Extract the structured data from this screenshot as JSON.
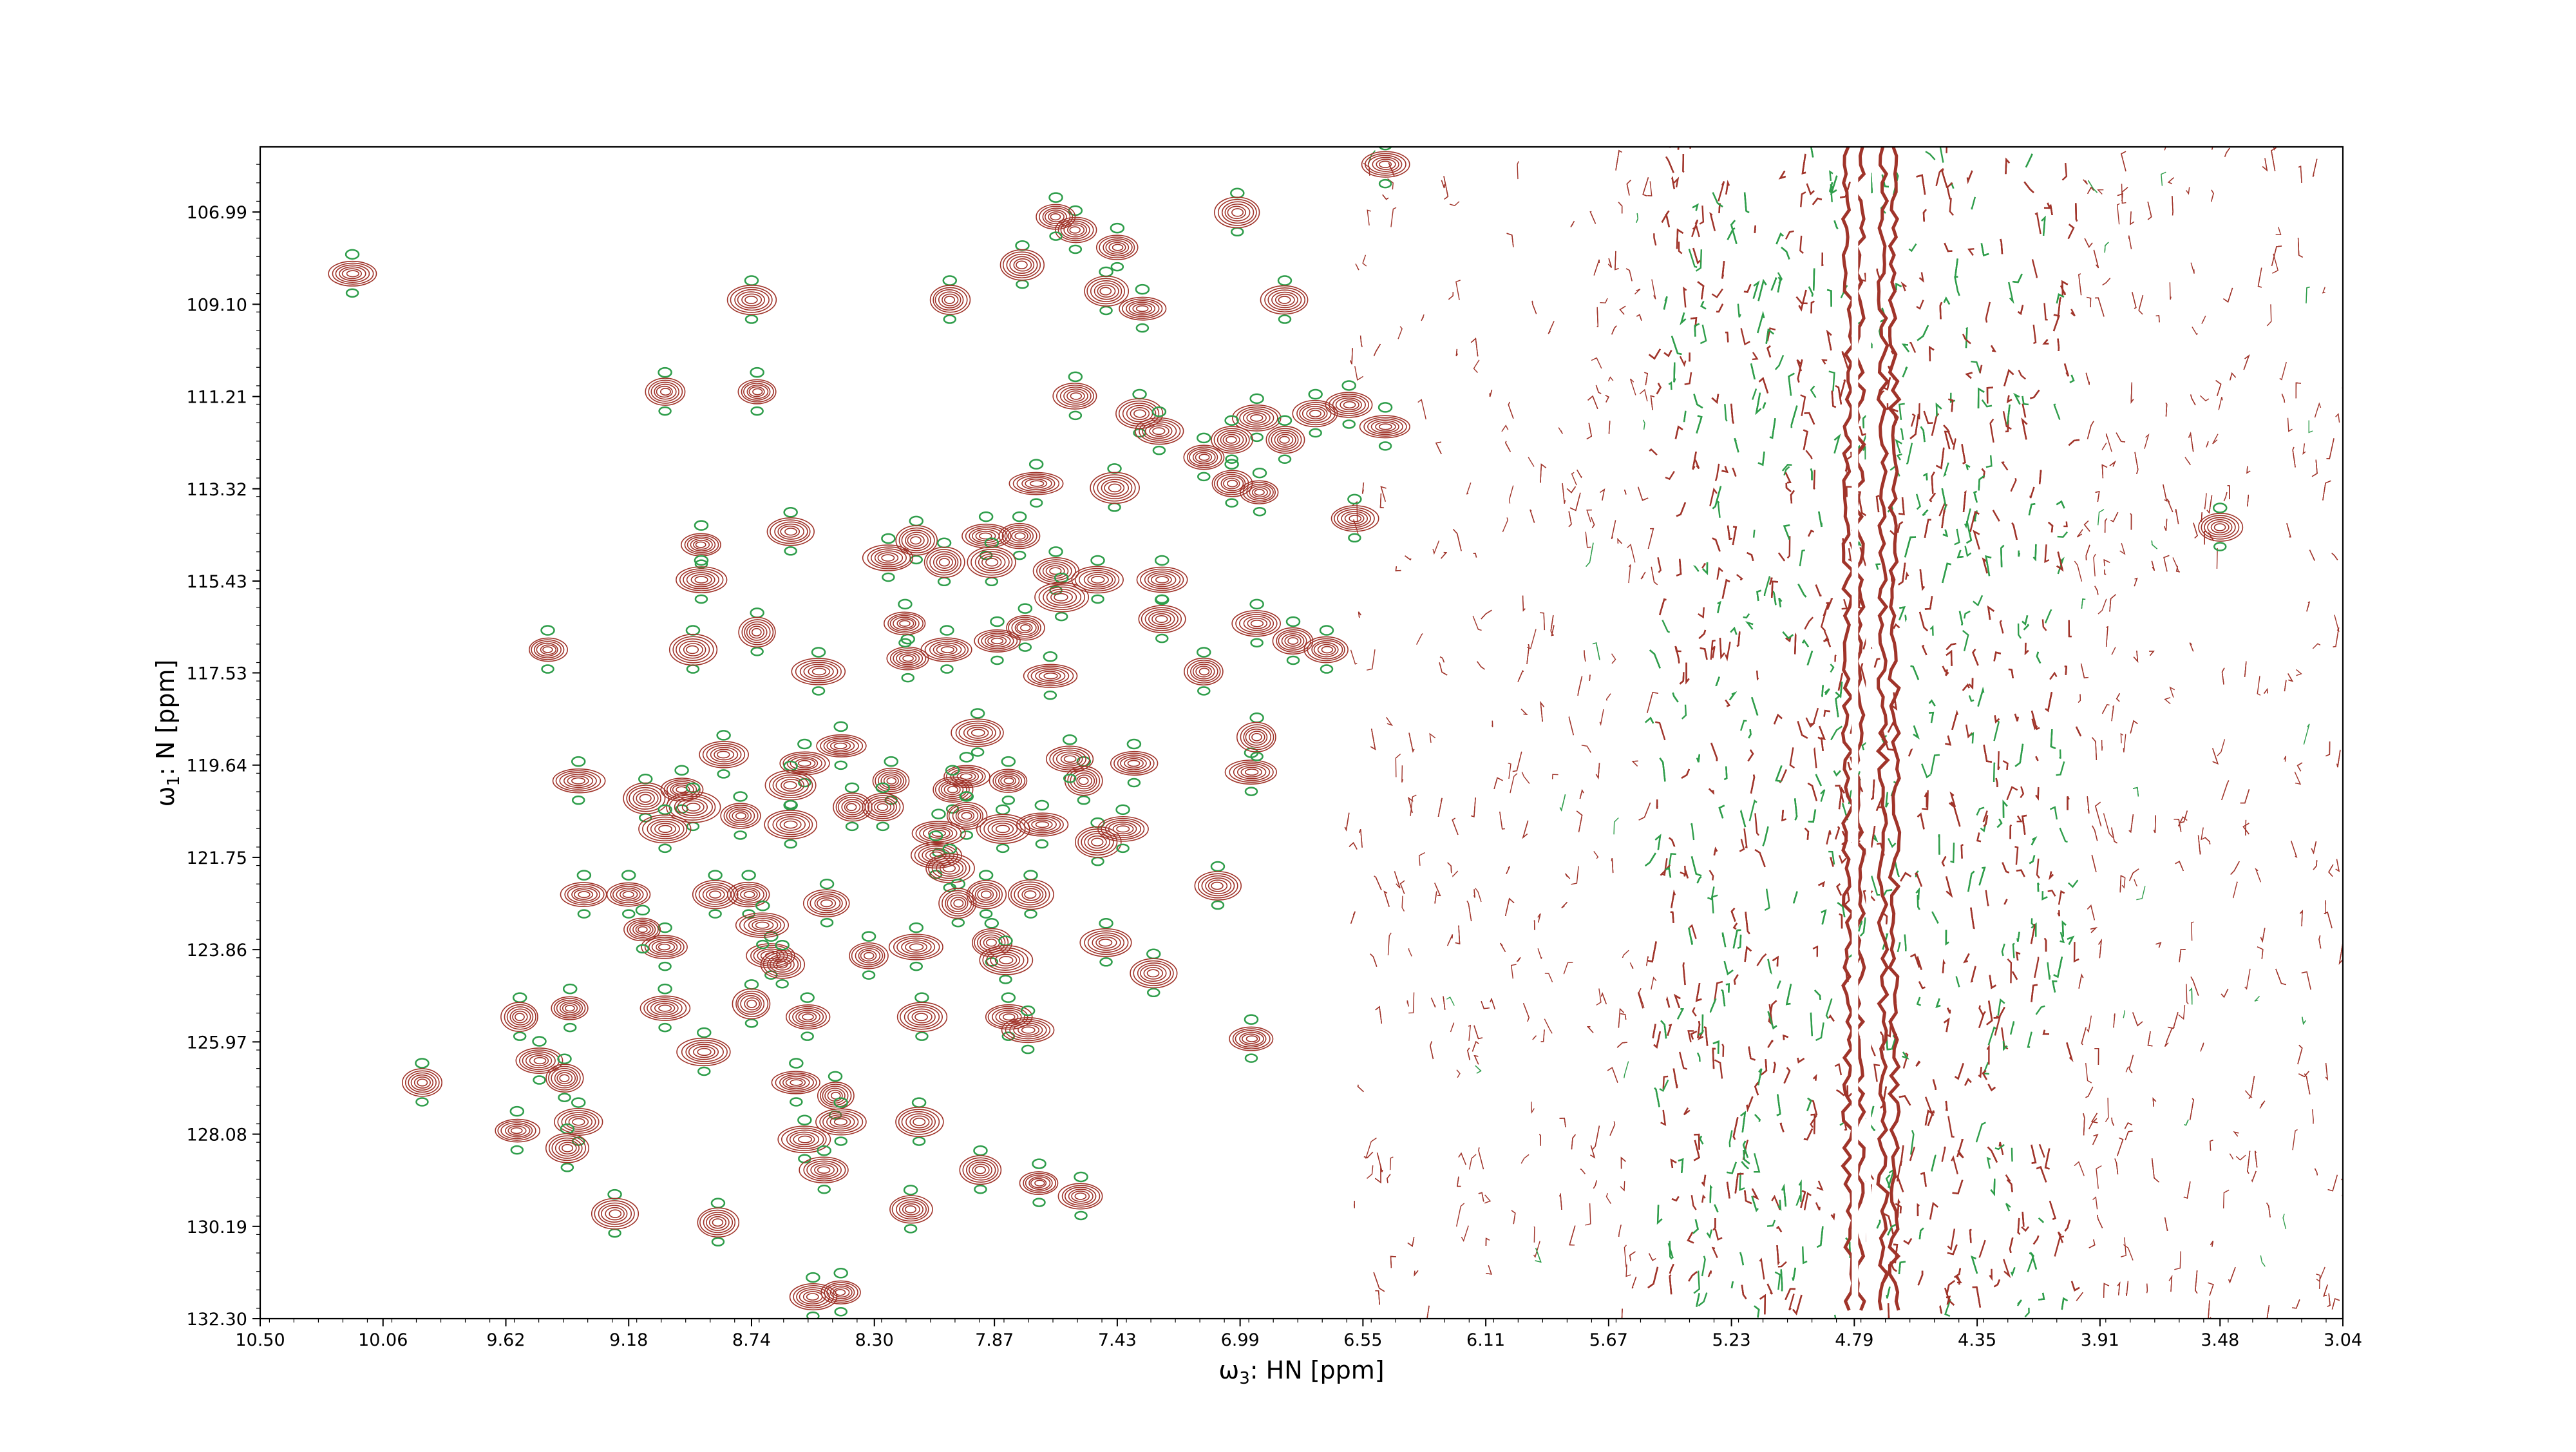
{
  "chart_data": {
    "type": "heatmap",
    "subtype": "2D NMR contour spectrum",
    "title": "",
    "xlabel": {
      "symbol": "ω",
      "subscript": "3",
      "text": ": HN [ppm]"
    },
    "ylabel": {
      "symbol": "ω",
      "subscript": "1",
      "text": ": N [ppm]"
    },
    "xlim": [
      10.5,
      3.04
    ],
    "ylim": [
      132.3,
      105.5
    ],
    "x_axis_reversed": true,
    "y_axis_reversed": true,
    "x_ticks": [
      "10.50",
      "10.06",
      "9.62",
      "9.18",
      "8.74",
      "8.30",
      "7.87",
      "7.43",
      "6.99",
      "6.55",
      "6.11",
      "5.67",
      "5.23",
      "4.79",
      "4.35",
      "3.91",
      "3.48",
      "3.04"
    ],
    "y_ticks": [
      "106.99",
      "109.10",
      "111.21",
      "113.32",
      "115.43",
      "117.53",
      "119.64",
      "121.75",
      "123.86",
      "125.97",
      "128.08",
      "130.19",
      "132.30"
    ],
    "grid": false,
    "legend": "none",
    "colors": {
      "positive": "#a0342a",
      "negative": "#2e9d4a",
      "axes": "#000000"
    },
    "noise_band_ppm": [
      6.6,
      3.04
    ],
    "water_ridges_ppm": [
      4.79,
      4.78
    ],
    "peaks": [
      [
        10.17,
        108.4
      ],
      [
        8.74,
        109.0
      ],
      [
        8.03,
        109.0
      ],
      [
        7.58,
        107.4
      ],
      [
        7.65,
        107.1
      ],
      [
        7.47,
        108.8
      ],
      [
        7.34,
        109.2
      ],
      [
        7.77,
        108.2
      ],
      [
        7.43,
        107.8
      ],
      [
        6.83,
        109.0
      ],
      [
        7.0,
        107.0
      ],
      [
        6.47,
        105.9
      ],
      [
        9.05,
        111.1
      ],
      [
        8.72,
        111.1
      ],
      [
        7.58,
        111.2
      ],
      [
        7.35,
        111.6
      ],
      [
        7.28,
        112.0
      ],
      [
        6.93,
        111.7
      ],
      [
        6.83,
        112.2
      ],
      [
        6.72,
        111.6
      ],
      [
        6.92,
        113.4
      ],
      [
        7.02,
        113.2
      ],
      [
        7.12,
        112.6
      ],
      [
        7.02,
        112.2
      ],
      [
        6.47,
        111.9
      ],
      [
        6.6,
        111.4
      ],
      [
        6.58,
        114.0
      ],
      [
        7.72,
        113.2
      ],
      [
        7.44,
        113.3
      ],
      [
        8.6,
        114.3
      ],
      [
        8.15,
        114.5
      ],
      [
        8.05,
        115.0
      ],
      [
        7.9,
        114.4
      ],
      [
        7.78,
        114.4
      ],
      [
        8.92,
        114.6
      ],
      [
        8.92,
        115.4
      ],
      [
        8.25,
        114.9
      ],
      [
        7.88,
        115.0
      ],
      [
        7.65,
        115.2
      ],
      [
        7.5,
        115.4
      ],
      [
        7.63,
        115.8
      ],
      [
        7.27,
        115.4
      ],
      [
        9.47,
        117.0
      ],
      [
        8.95,
        117.0
      ],
      [
        8.72,
        116.6
      ],
      [
        7.27,
        116.3
      ],
      [
        7.76,
        116.5
      ],
      [
        6.93,
        116.4
      ],
      [
        6.8,
        116.8
      ],
      [
        6.68,
        117.0
      ],
      [
        8.04,
        117.0
      ],
      [
        8.18,
        117.2
      ],
      [
        7.86,
        116.8
      ],
      [
        7.12,
        117.5
      ],
      [
        8.5,
        117.5
      ],
      [
        7.67,
        117.6
      ],
      [
        8.19,
        116.4
      ],
      [
        9.36,
        120.0
      ],
      [
        8.84,
        119.4
      ],
      [
        8.55,
        119.6
      ],
      [
        8.6,
        120.1
      ],
      [
        8.24,
        120.0
      ],
      [
        7.97,
        119.9
      ],
      [
        7.82,
        120.0
      ],
      [
        7.55,
        120.0
      ],
      [
        7.37,
        119.6
      ],
      [
        6.95,
        119.8
      ],
      [
        6.93,
        119.0
      ],
      [
        7.93,
        118.9
      ],
      [
        8.42,
        119.2
      ],
      [
        8.02,
        120.2
      ],
      [
        7.6,
        119.5
      ],
      [
        8.99,
        120.2
      ],
      [
        9.12,
        120.4
      ],
      [
        8.95,
        120.6
      ],
      [
        9.05,
        121.1
      ],
      [
        8.78,
        120.8
      ],
      [
        8.6,
        121.0
      ],
      [
        8.38,
        120.6
      ],
      [
        8.27,
        120.6
      ],
      [
        7.97,
        120.8
      ],
      [
        7.84,
        121.1
      ],
      [
        7.7,
        121.0
      ],
      [
        7.5,
        121.4
      ],
      [
        7.41,
        121.1
      ],
      [
        8.07,
        121.2
      ],
      [
        8.08,
        121.7
      ],
      [
        8.03,
        122.0
      ],
      [
        9.34,
        122.6
      ],
      [
        9.18,
        122.6
      ],
      [
        8.87,
        122.6
      ],
      [
        8.75,
        122.6
      ],
      [
        8.47,
        122.8
      ],
      [
        8.0,
        122.8
      ],
      [
        7.9,
        122.6
      ],
      [
        7.74,
        122.6
      ],
      [
        7.07,
        122.4
      ],
      [
        9.05,
        123.8
      ],
      [
        9.13,
        123.4
      ],
      [
        8.67,
        124.0
      ],
      [
        8.7,
        123.3
      ],
      [
        8.63,
        124.2
      ],
      [
        8.32,
        124.0
      ],
      [
        8.15,
        123.8
      ],
      [
        7.88,
        123.7
      ],
      [
        7.83,
        124.1
      ],
      [
        7.47,
        123.7
      ],
      [
        7.3,
        124.4
      ],
      [
        9.57,
        125.4
      ],
      [
        9.39,
        125.2
      ],
      [
        9.05,
        125.2
      ],
      [
        8.74,
        125.1
      ],
      [
        8.54,
        125.4
      ],
      [
        8.13,
        125.4
      ],
      [
        7.82,
        125.4
      ],
      [
        7.75,
        125.7
      ],
      [
        6.95,
        125.9
      ],
      [
        8.91,
        126.2
      ],
      [
        9.5,
        126.4
      ],
      [
        9.92,
        126.9
      ],
      [
        9.41,
        126.8
      ],
      [
        8.58,
        126.9
      ],
      [
        8.44,
        127.2
      ],
      [
        9.36,
        127.8
      ],
      [
        9.58,
        128.0
      ],
      [
        9.4,
        128.4
      ],
      [
        8.42,
        127.8
      ],
      [
        8.55,
        128.2
      ],
      [
        8.14,
        127.8
      ],
      [
        8.48,
        128.9
      ],
      [
        7.71,
        129.2
      ],
      [
        7.56,
        129.5
      ],
      [
        9.23,
        129.9
      ],
      [
        8.86,
        130.1
      ],
      [
        8.17,
        129.8
      ],
      [
        7.92,
        128.9
      ],
      [
        8.42,
        131.7
      ],
      [
        8.52,
        131.8
      ]
    ],
    "isolated_peaks": [
      [
        3.48,
        114.2
      ]
    ]
  }
}
